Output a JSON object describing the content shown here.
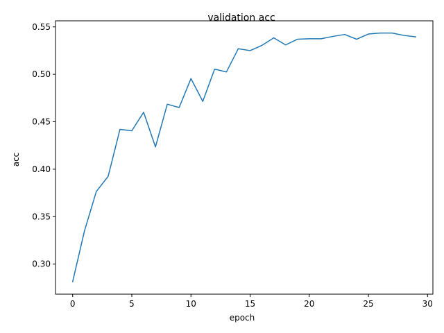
{
  "chart_data": {
    "type": "line",
    "title": "validation acc",
    "xlabel": "epoch",
    "ylabel": "acc",
    "xlim": [
      -1.45,
      30.45
    ],
    "ylim": [
      0.2683,
      0.5564
    ],
    "xticks": [
      0,
      5,
      10,
      15,
      20,
      25,
      30
    ],
    "yticks": [
      0.3,
      0.35,
      0.4,
      0.45,
      0.5,
      0.55
    ],
    "ytick_labels": [
      "0.30",
      "0.35",
      "0.40",
      "0.45",
      "0.50",
      "0.55"
    ],
    "grid": false,
    "series": [
      {
        "color": "#1f77b4",
        "x": [
          0,
          1,
          2,
          3,
          4,
          5,
          6,
          7,
          8,
          9,
          10,
          11,
          12,
          13,
          14,
          15,
          16,
          17,
          18,
          19,
          20,
          21,
          22,
          23,
          24,
          25,
          26,
          27,
          28,
          29
        ],
        "values": [
          0.2815,
          0.335,
          0.3765,
          0.3925,
          0.442,
          0.4405,
          0.46,
          0.4235,
          0.4685,
          0.465,
          0.4955,
          0.4715,
          0.5055,
          0.5025,
          0.527,
          0.525,
          0.5305,
          0.5385,
          0.531,
          0.537,
          0.5375,
          0.5375,
          0.54,
          0.542,
          0.537,
          0.5425,
          0.5435,
          0.5435,
          0.541,
          0.5395
        ]
      }
    ]
  }
}
